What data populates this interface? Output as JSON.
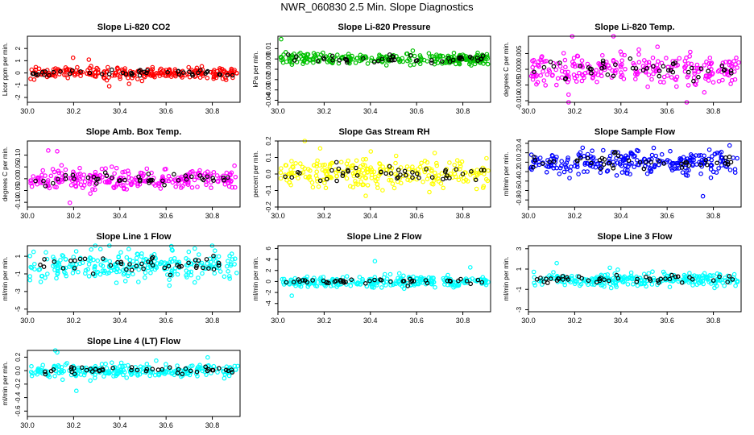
{
  "title": "NWR_060830  2.5 Min. Slope Diagnostics",
  "colors": {
    "outline": "#000000",
    "highlight": "#000000"
  },
  "chart_data": [
    {
      "type": "scatter",
      "title": "Slope Li-820 CO2",
      "ylabel": "Licor ppm per min.",
      "color": "#ff0000",
      "xlim": [
        30.0,
        30.92
      ],
      "ylim": [
        -2.4,
        3.0
      ],
      "spread": 0.32,
      "xticks": [
        30.0,
        30.2,
        30.4,
        30.6,
        30.8
      ],
      "xtick_labels": [
        "30.0",
        "30.2",
        "30.4",
        "30.6",
        "30.8"
      ],
      "yticks": [
        -2,
        -1,
        0,
        1,
        2
      ],
      "ytick_labels": [
        "-2",
        "-1",
        "0",
        "1",
        "2"
      ]
    },
    {
      "type": "scatter",
      "title": "Slope Li-820 Pressure",
      "ylabel": "kPa per min.",
      "color": "#00c000",
      "xlim": [
        30.0,
        30.92
      ],
      "ylim": [
        -0.042,
        0.022
      ],
      "spread": 0.004,
      "xticks": [
        30.0,
        30.2,
        30.4,
        30.6,
        30.8
      ],
      "xtick_labels": [
        "30.0",
        "30.2",
        "30.4",
        "30.6",
        "30.8"
      ],
      "yticks": [
        -0.04,
        -0.03,
        -0.02,
        -0.01,
        0.0,
        0.01
      ],
      "ytick_labels": [
        "-0.04",
        "-0.03",
        "-0.02",
        "-0.01",
        "0.00",
        "0.01"
      ]
    },
    {
      "type": "scatter",
      "title": "Slope Li-820 Temp.",
      "ylabel": "degrees C per min.",
      "color": "#ff00ff",
      "xlim": [
        30.0,
        30.92
      ],
      "ylim": [
        -0.0105,
        0.0105
      ],
      "spread": 0.0035,
      "xticks": [
        30.0,
        30.2,
        30.4,
        30.6,
        30.8
      ],
      "xtick_labels": [
        "30.0",
        "30.2",
        "30.4",
        "30.6",
        "30.8"
      ],
      "yticks": [
        -0.01,
        -0.005,
        0.0,
        0.005
      ],
      "ytick_labels": [
        "-0.010",
        "-0.005",
        "0.000",
        "0.005"
      ]
    },
    {
      "type": "scatter",
      "title": "Slope Amb. Box Temp.",
      "ylabel": "degrees C per min.",
      "color": "#ff00ff",
      "xlim": [
        30.0,
        30.92
      ],
      "ylim": [
        -0.12,
        0.16
      ],
      "spread": 0.03,
      "xticks": [
        30.0,
        30.2,
        30.4,
        30.6,
        30.8
      ],
      "xtick_labels": [
        "30.0",
        "30.2",
        "30.4",
        "30.6",
        "30.8"
      ],
      "yticks": [
        -0.1,
        -0.05,
        0.0,
        0.05,
        0.1
      ],
      "ytick_labels": [
        "-0.10",
        "-0.05",
        "0.00",
        "0.05",
        "0.10"
      ]
    },
    {
      "type": "scatter",
      "title": "Slope Gas Stream RH",
      "ylabel": "percent per min.",
      "color": "#ffff00",
      "xlim": [
        30.0,
        30.92
      ],
      "ylim": [
        -0.2,
        0.2
      ],
      "spread": 0.06,
      "xticks": [
        30.0,
        30.2,
        30.4,
        30.6,
        30.8
      ],
      "xtick_labels": [
        "30.0",
        "30.2",
        "30.4",
        "30.6",
        "30.8"
      ],
      "yticks": [
        -0.2,
        -0.1,
        0.0,
        0.1,
        0.2
      ],
      "ytick_labels": [
        "-0.2",
        "-0.1",
        "0.0",
        "0.1",
        "0.2"
      ]
    },
    {
      "type": "scatter",
      "title": "Slope Sample Flow",
      "ylabel": "ml/min per min.",
      "color": "#0000ff",
      "xlim": [
        30.0,
        30.92
      ],
      "ylim": [
        -0.95,
        0.45
      ],
      "spread": 0.18,
      "xticks": [
        30.0,
        30.2,
        30.4,
        30.6,
        30.8
      ],
      "xtick_labels": [
        "30.0",
        "30.2",
        "30.4",
        "30.6",
        "30.8"
      ],
      "yticks": [
        -0.8,
        -0.6,
        -0.4,
        -0.2,
        0.0,
        0.2,
        0.4
      ],
      "ytick_labels": [
        "-0.8",
        "-0.6",
        "-0.4",
        "-0.2",
        "0.0",
        "0.2",
        "0.4"
      ]
    },
    {
      "type": "scatter",
      "title": "Slope Line 1 Flow",
      "ylabel": "ml/min per min.",
      "color": "#00ffff",
      "xlim": [
        30.0,
        30.92
      ],
      "ylim": [
        -5.3,
        2.2
      ],
      "spread": 1.2,
      "xticks": [
        30.0,
        30.2,
        30.4,
        30.6,
        30.8
      ],
      "xtick_labels": [
        "30.0",
        "30.2",
        "30.4",
        "30.6",
        "30.8"
      ],
      "yticks": [
        -5,
        -3,
        -1,
        1
      ],
      "ytick_labels": [
        "-5",
        "-3",
        "-1",
        "1"
      ]
    },
    {
      "type": "scatter",
      "title": "Slope Line 2 Flow",
      "ylabel": "ml/min per min.",
      "color": "#00ffff",
      "xlim": [
        30.0,
        30.92
      ],
      "ylim": [
        -5.5,
        6.5
      ],
      "spread": 0.7,
      "xticks": [
        30.0,
        30.2,
        30.4,
        30.6,
        30.8
      ],
      "xtick_labels": [
        "30.0",
        "30.2",
        "30.4",
        "30.6",
        "30.8"
      ],
      "yticks": [
        -4,
        -2,
        0,
        2,
        4,
        6
      ],
      "ytick_labels": [
        "-4",
        "-2",
        "0",
        "2",
        "4",
        "6"
      ]
    },
    {
      "type": "scatter",
      "title": "Slope Line 3 Flow",
      "ylabel": "ml/min per min.",
      "color": "#00ffff",
      "xlim": [
        30.0,
        30.92
      ],
      "ylim": [
        -3.2,
        3.3
      ],
      "spread": 0.5,
      "xticks": [
        30.0,
        30.2,
        30.4,
        30.6,
        30.8
      ],
      "xtick_labels": [
        "30.0",
        "30.2",
        "30.4",
        "30.6",
        "30.8"
      ],
      "yticks": [
        -3,
        -1,
        1,
        3
      ],
      "ytick_labels": [
        "-3",
        "-1",
        "1",
        "3"
      ]
    },
    {
      "type": "scatter",
      "title": "Slope Line 4 (LT) Flow",
      "ylabel": "ml/min per min.",
      "color": "#00ffff",
      "xlim": [
        30.0,
        30.92
      ],
      "ylim": [
        -0.68,
        0.3
      ],
      "spread": 0.07,
      "xticks": [
        30.0,
        30.2,
        30.4,
        30.6,
        30.8
      ],
      "xtick_labels": [
        "30.0",
        "30.2",
        "30.4",
        "30.6",
        "30.8"
      ],
      "yticks": [
        -0.6,
        -0.4,
        -0.2,
        0.0,
        0.2
      ],
      "ytick_labels": [
        "-0.6",
        "-0.4",
        "-0.2",
        "0.0",
        "0.2"
      ]
    }
  ]
}
